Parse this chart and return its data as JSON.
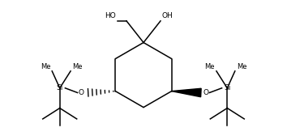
{
  "bg_color": "#ffffff",
  "line_color": "#000000",
  "line_width": 1.1,
  "font_size": 6.5,
  "fig_width": 3.54,
  "fig_height": 1.68,
  "dpi": 100,
  "xlim": [
    -185,
    185
  ],
  "ylim": [
    -88,
    82
  ]
}
